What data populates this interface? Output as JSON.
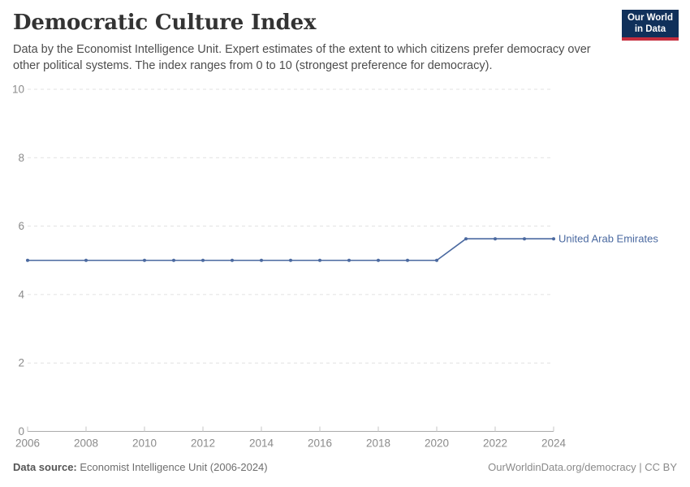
{
  "header": {
    "title": "Democratic Culture Index",
    "subtitle": "Data by the Economist Intelligence Unit. Expert estimates of the extent to which citizens prefer democracy over other political systems. The index ranges from 0 to 10 (strongest preference for democracy).",
    "logo_line1": "Our World",
    "logo_line2": "in Data"
  },
  "chart_data": {
    "type": "line",
    "title": "Democratic Culture Index",
    "xlabel": "",
    "ylabel": "",
    "xlim": [
      2006,
      2024
    ],
    "ylim": [
      0,
      10
    ],
    "yticks": [
      0,
      2,
      4,
      6,
      8,
      10
    ],
    "xticks": [
      2006,
      2008,
      2010,
      2012,
      2014,
      2016,
      2018,
      2020,
      2022,
      2024
    ],
    "grid": "horizontal-dashed",
    "legend_position": "end-of-line",
    "series": [
      {
        "name": "United Arab Emirates",
        "color": "#4a69a0",
        "points": [
          [
            2006,
            5.0
          ],
          [
            2008,
            5.0
          ],
          [
            2010,
            5.0
          ],
          [
            2011,
            5.0
          ],
          [
            2012,
            5.0
          ],
          [
            2013,
            5.0
          ],
          [
            2014,
            5.0
          ],
          [
            2015,
            5.0
          ],
          [
            2016,
            5.0
          ],
          [
            2017,
            5.0
          ],
          [
            2018,
            5.0
          ],
          [
            2019,
            5.0
          ],
          [
            2020,
            5.0
          ],
          [
            2021,
            5.63
          ],
          [
            2022,
            5.63
          ],
          [
            2023,
            5.63
          ],
          [
            2024,
            5.63
          ]
        ]
      }
    ]
  },
  "colors": {
    "grid": "#e1e1e1",
    "axis": "#ababab",
    "tick": "#c6c6c6",
    "tick_label": "#8b8b8b",
    "line": "#4a69a0",
    "logo_bg": "#10305a",
    "logo_stripe": "#c52d3d"
  },
  "footer": {
    "source_label": "Data source:",
    "source_value": "Economist Intelligence Unit (2006-2024)",
    "credit": "OurWorldinData.org/democracy | CC BY"
  }
}
